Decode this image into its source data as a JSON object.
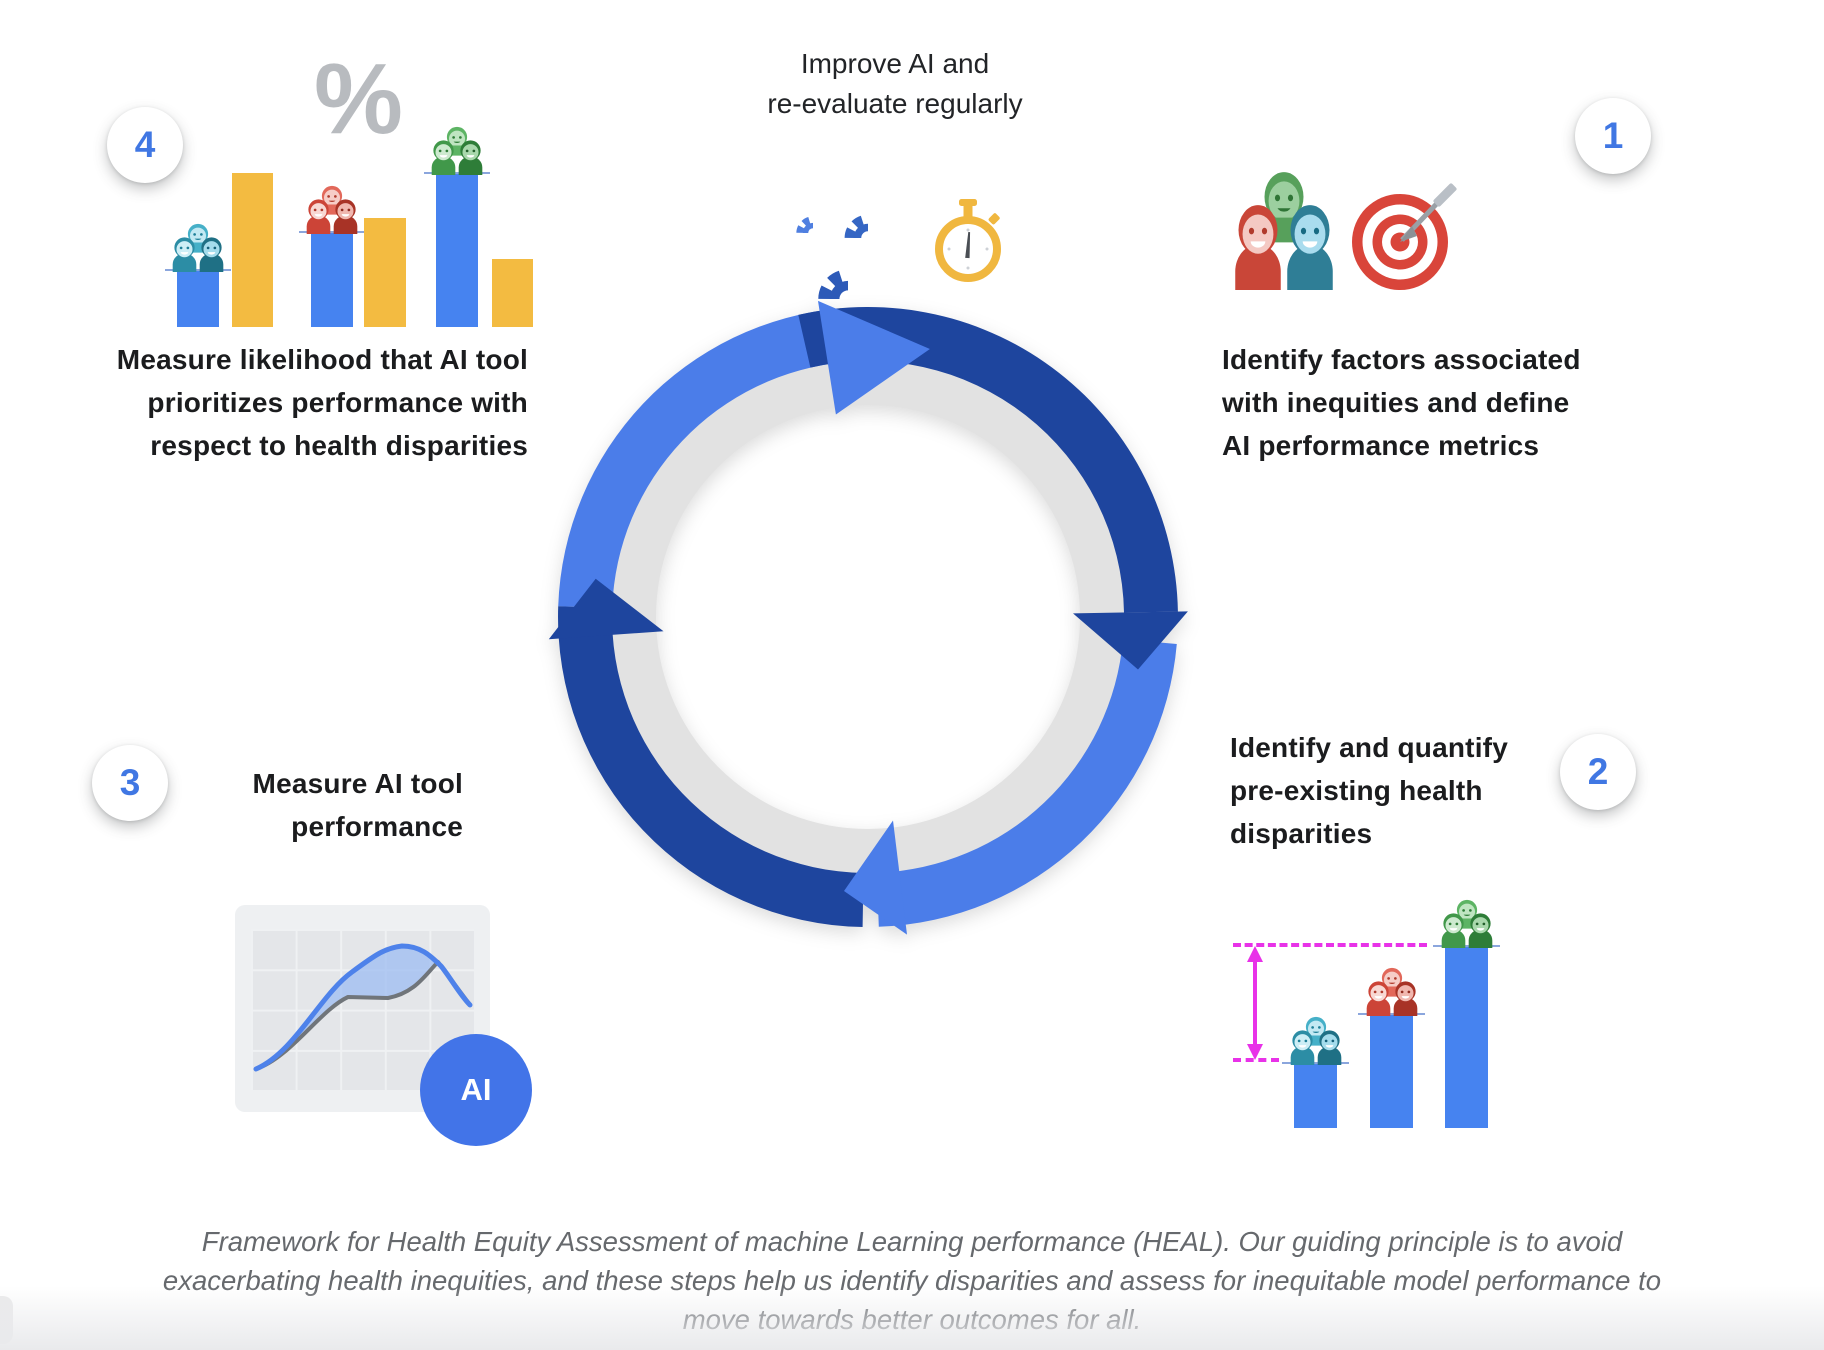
{
  "figure_title": "HEAL framework cycle",
  "cycle": {
    "label_line1": "Improve AI and",
    "label_line2": "re-evaluate regularly",
    "direction": "clockwise"
  },
  "steps": [
    {
      "number": "1",
      "lines": [
        "Identify factors associated",
        "with inequities and define",
        "AI performance metrics"
      ]
    },
    {
      "number": "2",
      "lines": [
        "Identify and quantify",
        "pre-existing health",
        "disparities"
      ]
    },
    {
      "number": "3",
      "lines": [
        "Measure AI tool",
        "performance"
      ]
    },
    {
      "number": "4",
      "lines": [
        "Measure likelihood that AI tool",
        "prioritizes performance with",
        "respect to health disparities"
      ]
    }
  ],
  "step3_badge": "AI",
  "step4_percent": "%",
  "icons": {
    "top": [
      "gears-icon",
      "stopwatch-icon"
    ],
    "step1": [
      "people-group-icon",
      "target-icon"
    ],
    "step2": [
      "people-group-icon"
    ],
    "step3": [
      "line-chart-icon",
      "ai-badge"
    ],
    "step4": [
      "percent-icon",
      "people-group-icon"
    ]
  },
  "accent_colors": {
    "arrow_light_blue": "#4b7de9",
    "arrow_dark_blue": "#1e459e",
    "ring_gray": "#e2e2e2",
    "bar_blue": "#4683f0",
    "bar_yellow": "#f3bb41",
    "magenta": "#e832e8",
    "number_blue": "#4077e3"
  },
  "chart_data": [
    {
      "id": "step2-disparities",
      "type": "bar",
      "title": "Pre-existing health disparities across groups (illustrative, no axes)",
      "categories": [
        "teal-group",
        "red-group",
        "green-group"
      ],
      "values": [
        65,
        114,
        182
      ],
      "unit": "relative px height",
      "annotation": "magenta dashed lines + double arrow mark gap between lowest and highest group"
    },
    {
      "id": "step4-likelihood",
      "type": "bar",
      "title": "Likelihood AI prioritizes performance vs disparity (illustrative, no axes)",
      "categories": [
        "teal-group",
        "red-group",
        "green-group"
      ],
      "series": [
        {
          "name": "blue-performance",
          "values": [
            57,
            95,
            154
          ]
        },
        {
          "name": "yellow-comparison",
          "values": [
            154,
            109,
            68
          ]
        }
      ],
      "unit": "relative px height"
    },
    {
      "id": "step3-performance",
      "type": "line",
      "title": "AI tool performance curve vs baseline (illustrative icon)",
      "series": [
        {
          "name": "baseline-gray",
          "x_norm": [
            0.0,
            0.45,
            0.62,
            0.85,
            1.0
          ],
          "y_norm": [
            0.05,
            0.48,
            0.47,
            0.72,
            0.45
          ]
        },
        {
          "name": "ai-blue",
          "x_norm": [
            0.0,
            0.45,
            0.68,
            0.85,
            1.0
          ],
          "y_norm": [
            0.05,
            0.62,
            0.78,
            0.68,
            0.45
          ]
        }
      ]
    }
  ],
  "caption_lines": [
    "Framework for Health Equity Assessment of machine Learning performance (HEAL). Our guiding principle is to avoid",
    "exacerbating health inequities, and these steps help us identify disparities and assess for inequitable model performance to",
    "move towards better outcomes for all."
  ]
}
